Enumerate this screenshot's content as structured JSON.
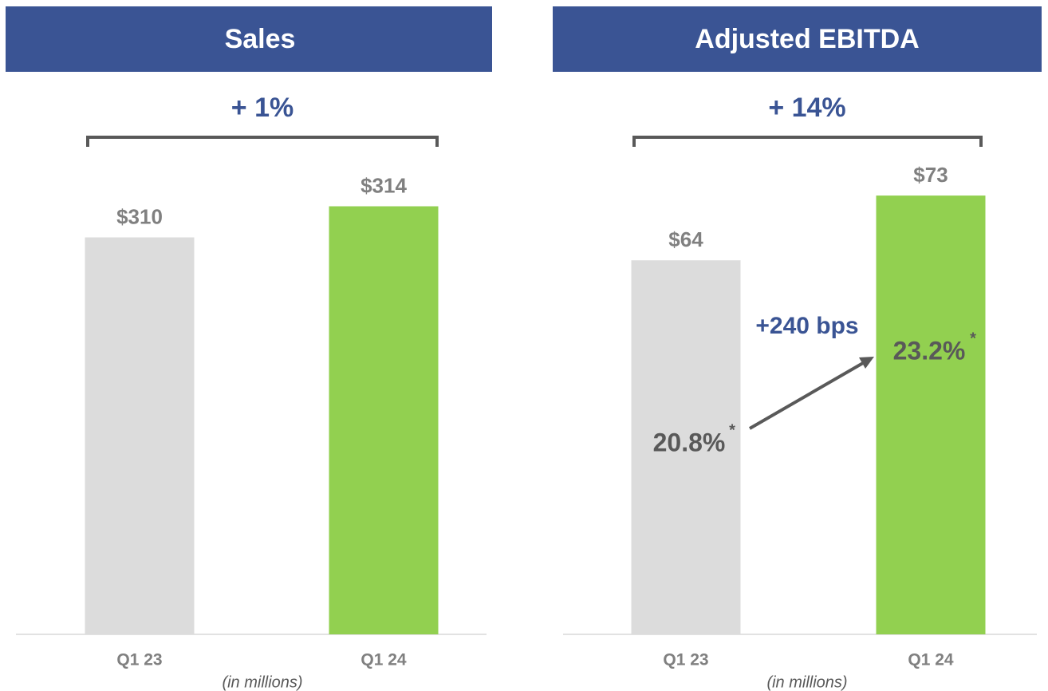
{
  "chart_data": [
    {
      "type": "bar",
      "title": "Sales",
      "growth": "+ 1%",
      "note": "(in millions)",
      "categories": [
        "Q1 23",
        "Q1 24"
      ],
      "values": [
        310,
        314
      ],
      "value_labels": [
        "$310",
        "$314"
      ],
      "colors": [
        "#dcdcdc",
        "#92d050"
      ],
      "ylim": [
        259,
        320
      ]
    },
    {
      "type": "bar",
      "title": "Adjusted EBITDA",
      "growth": "+ 14%",
      "note": "(in millions)",
      "categories": [
        "Q1 23",
        "Q1 24"
      ],
      "values": [
        64,
        73
      ],
      "value_labels": [
        "$64",
        "$73"
      ],
      "colors": [
        "#dcdcdc",
        "#92d050"
      ],
      "ylim": [
        12,
        78
      ],
      "annotations": {
        "change": "+240 bps",
        "margins": [
          "20.8%",
          "23.2%"
        ],
        "footnote_marker": "*"
      }
    }
  ]
}
